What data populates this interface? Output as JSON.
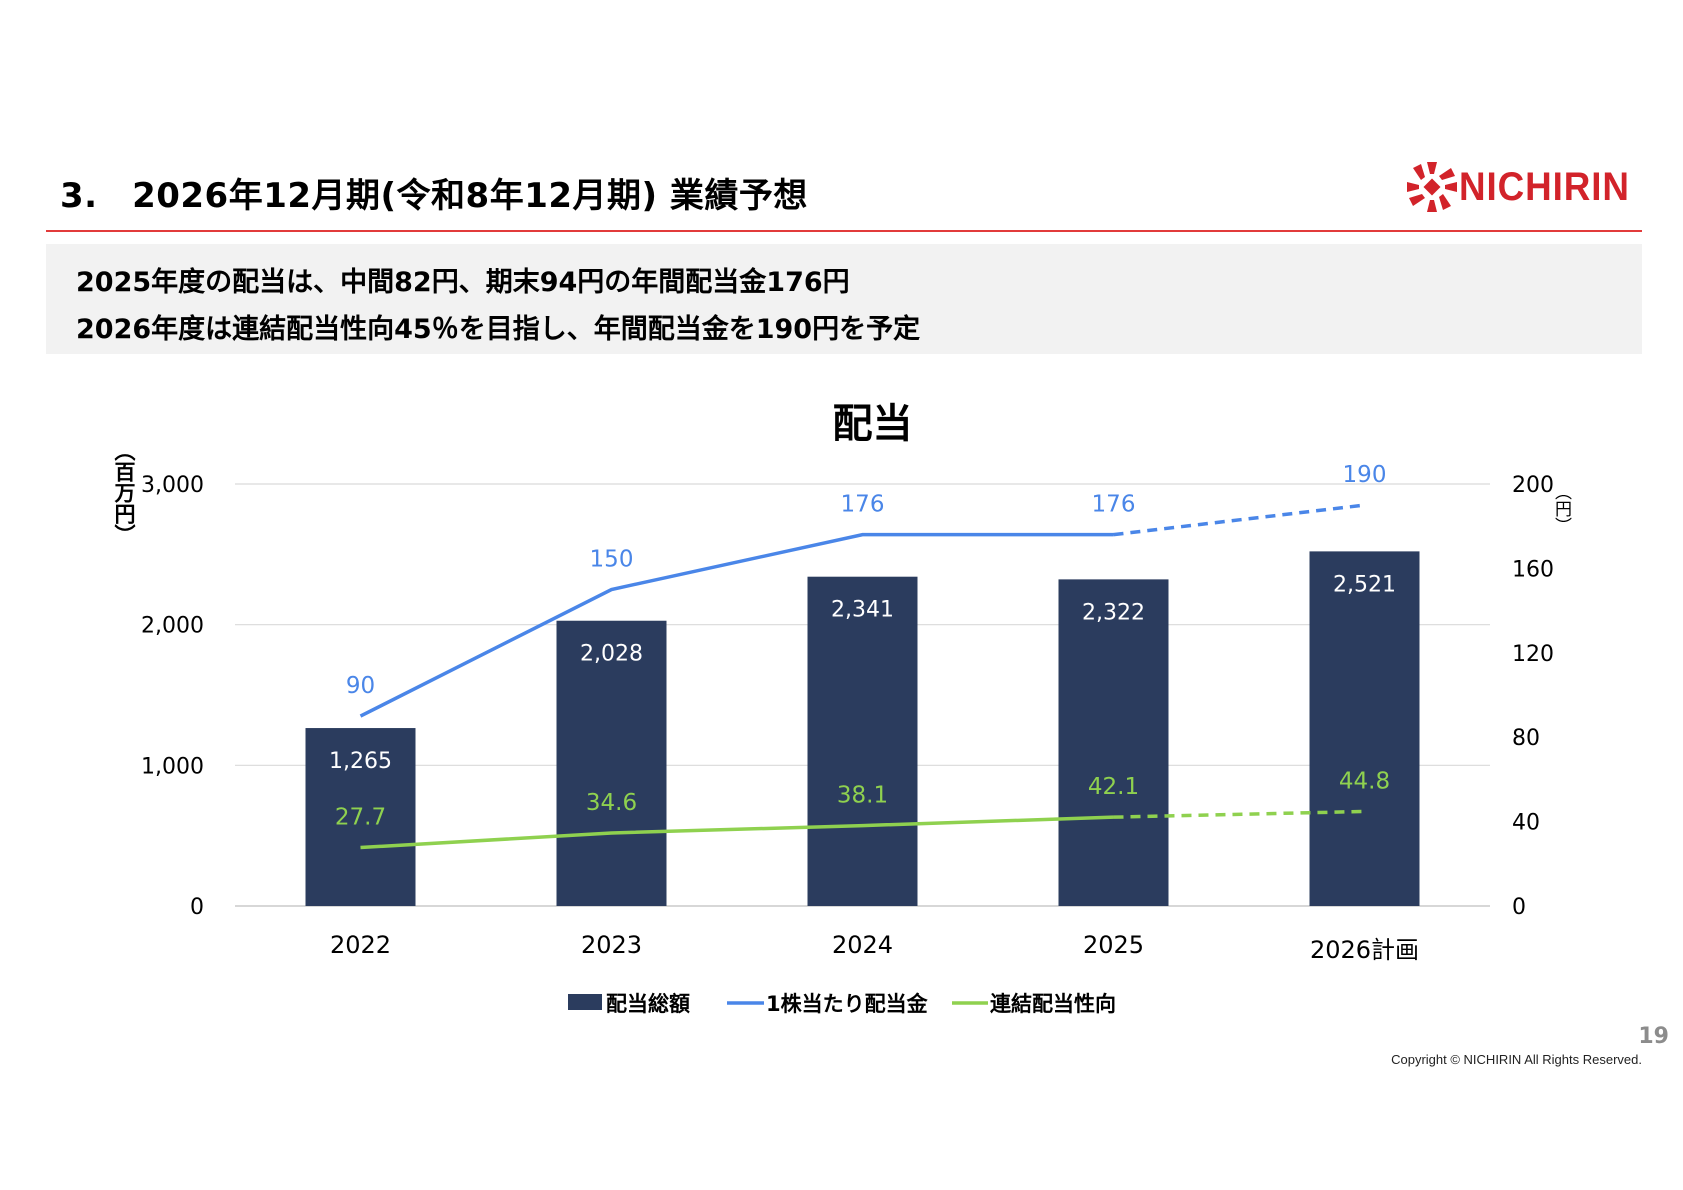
{
  "header": {
    "title": "3.　2026年12月期(令和8年12月期) 業績予想",
    "logo_text": "NICHIRIN"
  },
  "summary": {
    "line1": "2025年度の配当は、中間82円、期末94円の年間配当金176円",
    "line2": "2026年度は連結配当性向45％を目指し、年間配当金を190円を予定"
  },
  "footer": {
    "page_number": "19",
    "copyright": "Copyright © NICHIRIN All Rights Reserved."
  },
  "colors": {
    "accent_red": "#d2232a",
    "bar": "#2b3c5e",
    "dps_line": "#4a86e8",
    "payout_line": "#8fd14f"
  },
  "chart_data": {
    "type": "bar",
    "title": "配当",
    "categories": [
      "2022",
      "2023",
      "2024",
      "2025",
      "2026計画"
    ],
    "ylabel": "（百万円）",
    "y2label": "（円）",
    "ylim": [
      0,
      3000
    ],
    "y2lim": [
      0,
      200
    ],
    "yticks": [
      "0",
      "1,000",
      "2,000",
      "3,000"
    ],
    "y2ticks": [
      "0",
      "40",
      "80",
      "120",
      "160",
      "200"
    ],
    "grid": true,
    "legend_position": "bottom",
    "series": [
      {
        "name": "配当総額",
        "type": "bar",
        "axis": "left",
        "values": [
          1265,
          2028,
          2341,
          2322,
          2521
        ],
        "labels": [
          "1,265",
          "2,028",
          "2,341",
          "2,322",
          "2,521"
        ]
      },
      {
        "name": "1株当たり配当金",
        "type": "line",
        "axis": "right",
        "values": [
          90,
          150,
          176,
          176,
          190
        ],
        "labels": [
          "90",
          "150",
          "176",
          "176",
          "190"
        ],
        "dashed_last_segment": true
      },
      {
        "name": "連結配当性向",
        "type": "line",
        "axis": "right",
        "values": [
          27.7,
          34.6,
          38.1,
          42.1,
          44.8
        ],
        "labels": [
          "27.7",
          "34.6",
          "38.1",
          "42.1",
          "44.8"
        ],
        "dashed_last_segment": true
      }
    ]
  }
}
